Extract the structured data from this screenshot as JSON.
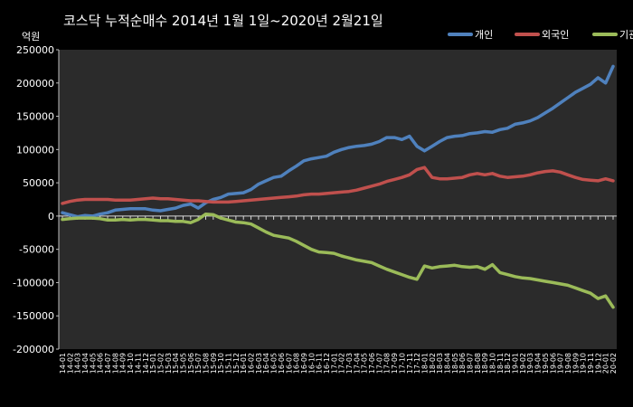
{
  "chart_data": {
    "type": "line",
    "title": "코스닥 누적순매수 2014년 1월 1일~2020년 2월21일",
    "unit_label": "억원",
    "ylim": [
      -200000,
      250000
    ],
    "y_ticks": [
      -200000,
      -150000,
      -100000,
      -50000,
      0,
      50000,
      100000,
      150000,
      200000,
      250000
    ],
    "y_tick_labels": [
      "-200000",
      "-150000",
      "-100000",
      "-50000",
      "0",
      "50000",
      "100000",
      "150000",
      "200000",
      "250000"
    ],
    "x": [
      "14-01",
      "14-02",
      "14-03",
      "14-04",
      "14-05",
      "14-06",
      "14-07",
      "14-08",
      "14-09",
      "14-10",
      "14-11",
      "14-12",
      "15-01",
      "15-02",
      "15-03",
      "15-04",
      "15-05",
      "15-06",
      "15-07",
      "15-08",
      "15-09",
      "15-10",
      "15-11",
      "15-12",
      "16-01",
      "16-02",
      "16-03",
      "16-04",
      "16-05",
      "16-06",
      "16-07",
      "16-08",
      "16-09",
      "16-10",
      "16-11",
      "16-12",
      "17-01",
      "17-02",
      "17-03",
      "17-04",
      "17-05",
      "17-06",
      "17-07",
      "17-08",
      "17-09",
      "17-10",
      "17-11",
      "17-12",
      "18-01",
      "18-02",
      "18-03",
      "18-04",
      "18-05",
      "18-06",
      "18-07",
      "18-08",
      "18-09",
      "18-10",
      "18-11",
      "18-12",
      "19-01",
      "19-02",
      "19-03",
      "19-04",
      "19-05",
      "19-06",
      "19-07",
      "19-08",
      "19-09",
      "19-10",
      "19-11",
      "19-12",
      "20-01",
      "20-02"
    ],
    "grid": false,
    "legend_position": "top-right",
    "series": [
      {
        "name": "개인",
        "color": "#4F81BD",
        "values": [
          5000,
          2000,
          -1000,
          1000,
          0,
          3000,
          5000,
          9000,
          10000,
          11000,
          11000,
          11000,
          9000,
          8000,
          10000,
          12000,
          16000,
          18000,
          12000,
          20000,
          25000,
          28000,
          33000,
          34000,
          35000,
          40000,
          48000,
          53000,
          58000,
          60000,
          68000,
          75000,
          83000,
          86000,
          88000,
          90000,
          96000,
          100000,
          103000,
          105000,
          106000,
          108000,
          112000,
          118000,
          118000,
          115000,
          120000,
          105000,
          98000,
          105000,
          112000,
          118000,
          120000,
          121000,
          124000,
          125000,
          127000,
          126000,
          130000,
          132000,
          138000,
          140000,
          143000,
          148000,
          155000,
          162000,
          170000,
          178000,
          186000,
          192000,
          198000,
          208000,
          200000,
          225000
        ]
      },
      {
        "name": "외국인",
        "color": "#C0504D",
        "values": [
          19000,
          22000,
          24000,
          25000,
          25000,
          25000,
          25000,
          24000,
          24000,
          24000,
          25000,
          26000,
          27000,
          26000,
          26000,
          25000,
          24000,
          23000,
          23000,
          22000,
          21000,
          21000,
          21000,
          22000,
          23000,
          24000,
          25000,
          26000,
          27000,
          28000,
          29000,
          30000,
          32000,
          33000,
          33000,
          34000,
          35000,
          36000,
          37000,
          39000,
          42000,
          45000,
          48000,
          52000,
          55000,
          58000,
          62000,
          70000,
          73000,
          58000,
          56000,
          56000,
          57000,
          58000,
          62000,
          64000,
          62000,
          64000,
          60000,
          58000,
          59000,
          60000,
          62000,
          65000,
          67000,
          68000,
          66000,
          62000,
          58000,
          55000,
          54000,
          53000,
          56000,
          53000
        ]
      },
      {
        "name": "기관",
        "color": "#9BBB59",
        "values": [
          -5000,
          -4000,
          -3000,
          -3000,
          -3000,
          -4000,
          -6000,
          -6000,
          -5000,
          -6000,
          -5000,
          -5000,
          -6000,
          -7000,
          -7000,
          -8000,
          -8000,
          -10000,
          -5000,
          3000,
          2000,
          -3000,
          -6000,
          -9000,
          -10000,
          -12000,
          -18000,
          -24000,
          -29000,
          -31000,
          -33000,
          -38000,
          -44000,
          -50000,
          -54000,
          -55000,
          -56000,
          -60000,
          -63000,
          -66000,
          -68000,
          -70000,
          -75000,
          -80000,
          -84000,
          -88000,
          -92000,
          -95000,
          -75000,
          -78000,
          -76000,
          -75000,
          -74000,
          -76000,
          -77000,
          -76000,
          -80000,
          -73000,
          -85000,
          -88000,
          -91000,
          -93000,
          -94000,
          -96000,
          -98000,
          -100000,
          -102000,
          -104000,
          -108000,
          -112000,
          -116000,
          -124000,
          -120000,
          -137000
        ]
      }
    ]
  }
}
